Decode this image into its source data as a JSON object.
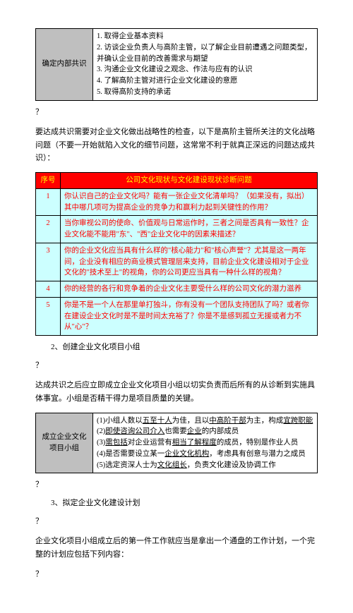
{
  "table1": {
    "header": "确定内部共识",
    "items": [
      "1. 取得企业基本资料",
      "2. 访谈企业负责人与高阶主管，以了解企业目前遭遇之问题类型，并确认企业目前的改善需求与期望",
      "3. 沟通企业文化建设之观念、作法与应有的认识",
      "4. 了解高阶主管对进行企业文化建设的意愿",
      "5. 取得高阶支持的承诺"
    ]
  },
  "q_mark": "？",
  "para1": "要达成共识需要对企业文化做出战略性的检查，以下是高阶主管所关注的文化战略问题（不要一开始就陷入文化的细节问题，这常常不利于就真正深远的问题达成共识）：",
  "strategy_table": {
    "col1": "序号",
    "col2": "公司文化现状与文化建设现状诊断问题",
    "rows": [
      {
        "n": "1",
        "t": "你认识自己的企业文化吗？能有一张企业文化清单吗？（如果没有，拟出）其中哪几项可为提高企业的竞争力和赢利力起到关键性的作用？"
      },
      {
        "n": "2",
        "t": "当你审视公司的使命、价值观与日常运作时，三者之间是否具有一致性？企业文化能不能用\"东\"、\"西\"企业文化中的因素来描述？"
      },
      {
        "n": "3",
        "t": "你的企业文化应当具有什么样的\"核心能力\"和\"核心声誉\"？尤其是这一两年间，企业没有相应的商业模式管理层来支持，目前企业文化建设相对于企业文化的\"技术至上\"的视角，你的公司更应当具有一种什么样的视角？"
      },
      {
        "n": "4",
        "t": "你的经营的各行和竞争着的企业文化主要受什么样的公司文化的潜力滋养"
      },
      {
        "n": "5",
        "t": "你是不是一个人在那里单打独斗，你有没有一个团队支持团队了吗？或者你在建设企业文化时是不是时间太充裕了？你是不是感到孤立无援或者力不从\"心\"？"
      }
    ]
  },
  "num2": "2、创建企业文化项目小组",
  "para2": "达成共识之后应立即成立企业文化项目小组以切实负责而后所有的从诊断到实施具体事宜。小组是否精干得力是项目质量的关键。",
  "table3": {
    "header": "成立企业文化项目小组",
    "items": [
      "(1)小组人数以五至十人为佳，且以中高阶干部为主，构成宜跨职能",
      "(2)即使咨询公司介入也需要企业的内部成员",
      "(3)需包括对企业运营有相当了解程度的成员，特别是作业人员",
      "(4)是否需要设立某一企业文化机构，考虑具有创意与潜力之成员",
      "(5)选定资深人士为文化组长，负责文化建设及协调工作"
    ]
  },
  "num3": "3、拟定企业文化建设计划",
  "para3": "企业文化项目小组成立后的第一件工作就应当是拿出一个通盘的工作计划，一个完整的计划应包括下列内容："
}
